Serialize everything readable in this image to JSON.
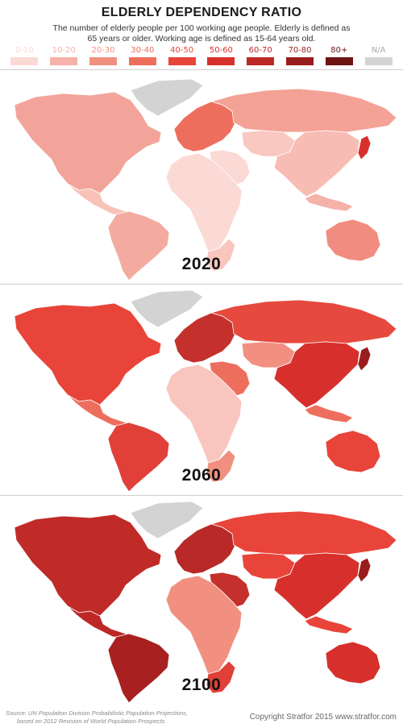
{
  "title": "ELDERLY DEPENDENCY RATIO",
  "subtitle": "The number of elderly people per 100 working age people. Elderly is defined as 65 years or older. Working age is defined as 15-64 years old.",
  "legend": [
    {
      "label": "0-10",
      "color": "#fbd9d4"
    },
    {
      "label": "10-20",
      "color": "#f6b1a8"
    },
    {
      "label": "20-30",
      "color": "#f19080"
    },
    {
      "label": "30-40",
      "color": "#ee6e5e"
    },
    {
      "label": "40-50",
      "color": "#e8443a"
    },
    {
      "label": "50-60",
      "color": "#d7302c"
    },
    {
      "label": "60-70",
      "color": "#bd2826"
    },
    {
      "label": "70-80",
      "color": "#9a1d1d"
    },
    {
      "label": "80+",
      "color": "#6e1212"
    },
    {
      "label": "N/A",
      "color": "#d3d3d3"
    }
  ],
  "maps": [
    {
      "year": "2020",
      "palette": {
        "north_america": "#f3a49a",
        "latin_america": "#f8c2b9",
        "south_america": "#f4ab9f",
        "greenland": "#d3d3d3",
        "europe": "#ee6e5e",
        "russia": "#f4a196",
        "middle_east": "#fbd9d4",
        "central_asia": "#f9c8c0",
        "asia": "#f7bcb3",
        "japan": "#d7302c",
        "africa": "#fbdad5",
        "south_africa": "#f8c6bf",
        "australia": "#f08d80",
        "oceania": "#f6b1a8"
      }
    },
    {
      "year": "2060",
      "palette": {
        "north_america": "#e8443a",
        "latin_america": "#ee6e5e",
        "south_america": "#e04038",
        "greenland": "#d3d3d3",
        "europe": "#c4302b",
        "russia": "#e64a3f",
        "middle_east": "#ee6e5e",
        "central_asia": "#f19080",
        "asia": "#d7302c",
        "japan": "#9a1d1d",
        "africa": "#f8c6bf",
        "south_africa": "#f19080",
        "australia": "#e8443a",
        "oceania": "#ee6e5e"
      }
    },
    {
      "year": "2100",
      "palette": {
        "north_america": "#c02a27",
        "latin_america": "#bd2826",
        "south_america": "#a8201f",
        "greenland": "#d3d3d3",
        "europe": "#b82927",
        "russia": "#e8443a",
        "middle_east": "#c4302b",
        "central_asia": "#e8443a",
        "asia": "#d7302c",
        "japan": "#9a1d1d",
        "africa": "#f19080",
        "south_africa": "#e04038",
        "australia": "#d7302c",
        "oceania": "#e8443a"
      }
    }
  ],
  "footer": {
    "source_line1": "Source: UN Population Division Probabilistic Population Projections,",
    "source_line2": "based on 2012 Revision of World Population Prospects",
    "copyright": "Copyright Stratfor 2015   www.stratfor.com"
  }
}
